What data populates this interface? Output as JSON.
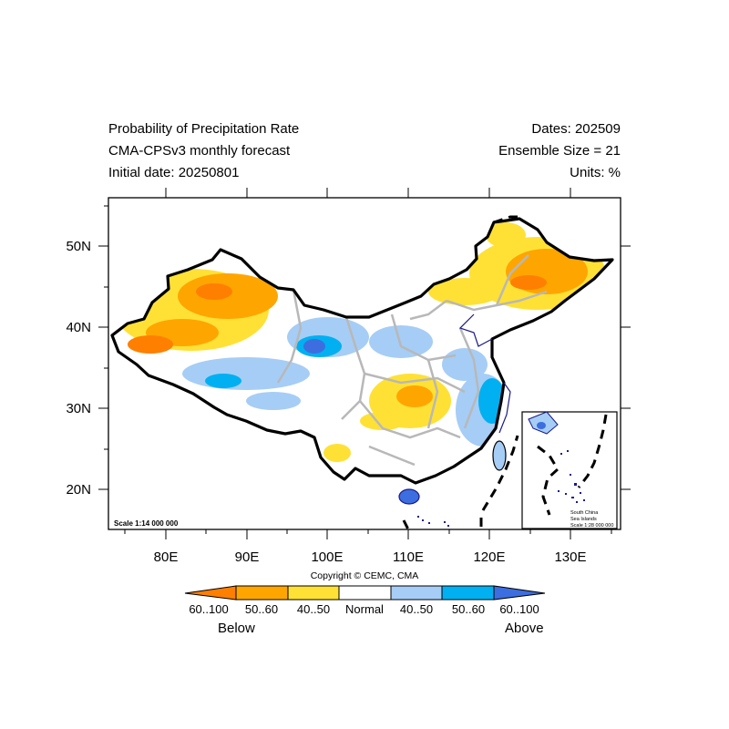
{
  "header": {
    "title_line1": "Probability of Precipitation Rate",
    "title_line2": "CMA-CPSv3 monthly forecast",
    "title_line3": "Initial date: 20250801",
    "dates": "Dates: 202509",
    "ensemble": "Ensemble Size = 21",
    "units": "Units: %"
  },
  "axes": {
    "lon_ticks": [
      "80E",
      "90E",
      "100E",
      "110E",
      "120E",
      "130E"
    ],
    "lat_ticks": [
      "50N",
      "40N",
      "30N",
      "20N"
    ],
    "lon_range": [
      73,
      135
    ],
    "lat_range": [
      15,
      56
    ]
  },
  "map": {
    "scale_main": "Scale 1:14 000 000",
    "inset_line1": "South China",
    "inset_line2": "Sea Islands",
    "inset_scale": "Scale 1:28 000 000"
  },
  "copyright": "Copyright © CEMC, CMA",
  "colorbar": {
    "labels": [
      "60..100",
      "50..60",
      "40..50",
      "Normal",
      "40..50",
      "50..60",
      "60..100"
    ],
    "colors": [
      "#ff7f00",
      "#ffa500",
      "#ffe135",
      "#ffffff",
      "#a6cdf5",
      "#00b0f0",
      "#3c6ee0"
    ],
    "below": "Below",
    "above": "Above"
  }
}
